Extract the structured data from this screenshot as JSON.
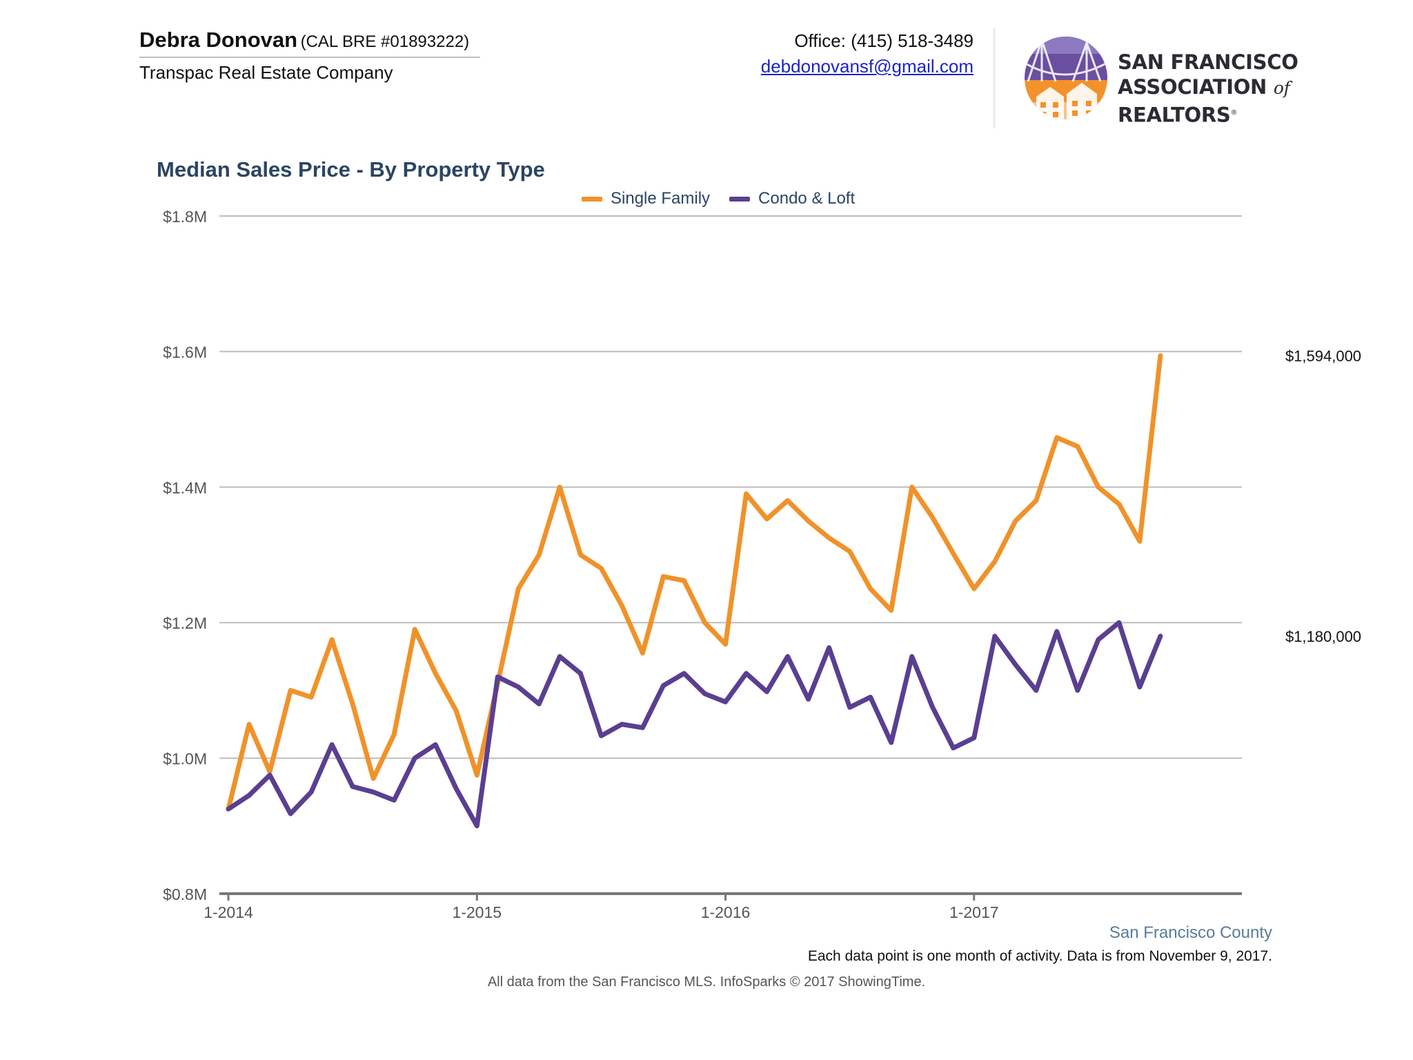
{
  "header": {
    "agent_name": "Debra Donovan",
    "license": "(CAL BRE #01893222)",
    "company": "Transpac Real Estate Company",
    "phone": "Office: (415) 518-3489",
    "email": "debdonovansf@gmail.com"
  },
  "logo": {
    "line1": "SAN FRANCISCO",
    "line2_a": "ASSOCIATION ",
    "line2_of": "of",
    "line2_b": " REALTORS",
    "registered": "®",
    "colors": {
      "purple": "#6a4fa0",
      "orange": "#f3922b"
    }
  },
  "chart_data": {
    "type": "line",
    "title": "Median Sales Price - By Property Type",
    "xlabel": "",
    "ylabel": "",
    "x_start": "2014-01",
    "x_ticks": [
      "1-2014",
      "1-2015",
      "1-2016",
      "1-2017"
    ],
    "y_ticks": [
      "$0.8M",
      "$1.0M",
      "$1.2M",
      "$1.4M",
      "$1.6M",
      "$1.8M"
    ],
    "ylim": [
      800000,
      1800000
    ],
    "grid": true,
    "legend_position": "top-center",
    "series": [
      {
        "name": "Single Family",
        "color": "#f0922a",
        "last_label": "$1,594,000",
        "values": [
          925000,
          1050000,
          980000,
          1100000,
          1090000,
          1175000,
          1080000,
          970000,
          1035000,
          1190000,
          1125000,
          1070000,
          975000,
          1110000,
          1250000,
          1300000,
          1400000,
          1300000,
          1280000,
          1225000,
          1155000,
          1268000,
          1262000,
          1200000,
          1168000,
          1390000,
          1353000,
          1380000,
          1350000,
          1325000,
          1305000,
          1250000,
          1218000,
          1400000,
          1355000,
          1302000,
          1250000,
          1290000,
          1350000,
          1380000,
          1473000,
          1460000,
          1400000,
          1375000,
          1320000,
          1594000
        ]
      },
      {
        "name": "Condo & Loft",
        "color": "#5a3f91",
        "last_label": "$1,180,000",
        "values": [
          925000,
          945000,
          975000,
          918000,
          950000,
          1020000,
          958000,
          950000,
          938000,
          1000000,
          1020000,
          955000,
          900000,
          1120000,
          1105000,
          1080000,
          1150000,
          1125000,
          1033000,
          1050000,
          1045000,
          1107000,
          1125000,
          1095000,
          1083000,
          1125000,
          1098000,
          1150000,
          1087000,
          1163000,
          1075000,
          1090000,
          1023000,
          1150000,
          1075000,
          1015000,
          1030000,
          1180000,
          1138000,
          1100000,
          1187000,
          1100000,
          1175000,
          1200000,
          1105000,
          1180000
        ]
      }
    ]
  },
  "footer": {
    "county": "San Francisco County",
    "note": "Each data point is one month of activity. Data is from November 9, 2017.",
    "source": "All data from the San Francisco MLS. InfoSparks © 2017 ShowingTime."
  }
}
